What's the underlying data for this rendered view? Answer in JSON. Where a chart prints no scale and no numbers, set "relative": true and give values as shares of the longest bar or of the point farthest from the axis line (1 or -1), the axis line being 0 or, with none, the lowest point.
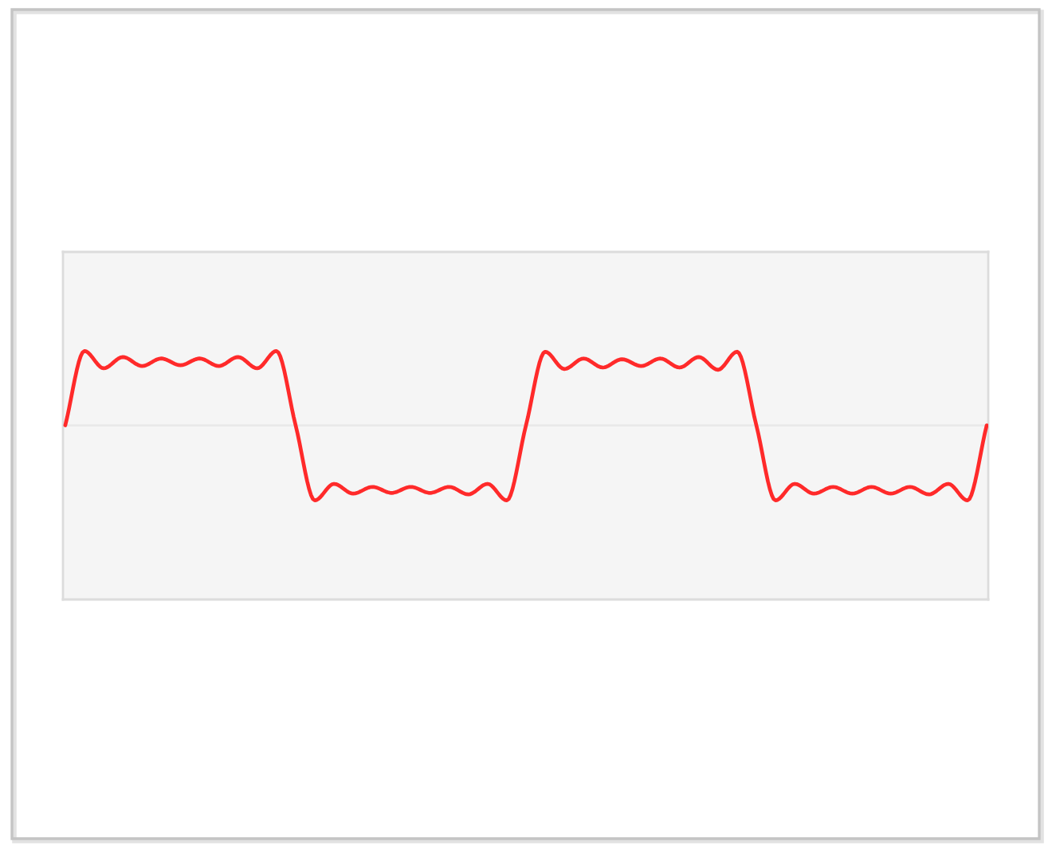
{
  "chart_data": {
    "type": "line",
    "relative": true,
    "categories": [
      null,
      null,
      null,
      null,
      null,
      null,
      null,
      null,
      null,
      null,
      null,
      null,
      null,
      null,
      null,
      null,
      null,
      null,
      null,
      null,
      null,
      null,
      null,
      null,
      null,
      null,
      null,
      null,
      null,
      null,
      null,
      null,
      null,
      null,
      null,
      null,
      null,
      null,
      null,
      null,
      null,
      null,
      null,
      null,
      null,
      null,
      null,
      null,
      null
    ],
    "series": [
      {
        "color": "#ff2a2a",
        "values": [
          0,
          0.99,
          0.76,
          0.91,
          0.79,
          0.89,
          0.8,
          0.89,
          0.79,
          0.91,
          0.76,
          0.99,
          0,
          -1,
          -0.78,
          -0.91,
          -0.82,
          -0.9,
          -0.82,
          -0.9,
          -0.82,
          -0.92,
          -0.78,
          -1,
          0,
          0.98,
          0.75,
          0.89,
          0.77,
          0.88,
          0.79,
          0.89,
          0.77,
          0.91,
          0.74,
          0.98,
          0,
          -1,
          -0.78,
          -0.91,
          -0.82,
          -0.91,
          -0.82,
          -0.91,
          -0.82,
          -0.92,
          -0.78,
          -1,
          0
        ]
      }
    ]
  }
}
